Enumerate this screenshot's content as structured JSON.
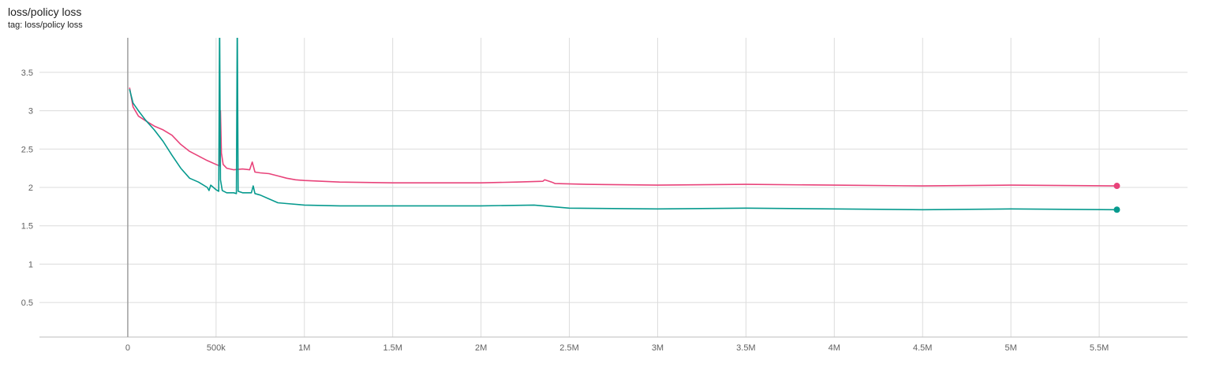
{
  "header": {
    "title": "loss/policy loss",
    "tag": "tag: loss/policy loss"
  },
  "chart_data": {
    "type": "line",
    "title": "loss/policy loss",
    "subtitle": "tag: loss/policy loss",
    "xlabel": "",
    "ylabel": "",
    "xlim": [
      -500000,
      6000000
    ],
    "ylim": [
      0.05,
      3.95
    ],
    "grid": true,
    "x_ticks": [
      {
        "value": 0,
        "label": "0"
      },
      {
        "value": 500000,
        "label": "500k"
      },
      {
        "value": 1000000,
        "label": "1M"
      },
      {
        "value": 1500000,
        "label": "1.5M"
      },
      {
        "value": 2000000,
        "label": "2M"
      },
      {
        "value": 2500000,
        "label": "2.5M"
      },
      {
        "value": 3000000,
        "label": "3M"
      },
      {
        "value": 3500000,
        "label": "3.5M"
      },
      {
        "value": 4000000,
        "label": "4M"
      },
      {
        "value": 4500000,
        "label": "4.5M"
      },
      {
        "value": 5000000,
        "label": "5M"
      },
      {
        "value": 5500000,
        "label": "5.5M"
      }
    ],
    "y_ticks": [
      {
        "value": 0.5,
        "label": "0.5"
      },
      {
        "value": 1,
        "label": "1"
      },
      {
        "value": 1.5,
        "label": "1.5"
      },
      {
        "value": 2,
        "label": "2"
      },
      {
        "value": 2.5,
        "label": "2.5"
      },
      {
        "value": 3,
        "label": "3"
      },
      {
        "value": 3.5,
        "label": "3.5"
      }
    ],
    "series": [
      {
        "color": "#e8437a",
        "x": [
          10000,
          30000,
          60000,
          100000,
          150000,
          200000,
          250000,
          300000,
          350000,
          400000,
          450000,
          500000,
          520000,
          525000,
          530000,
          540000,
          560000,
          600000,
          650000,
          690000,
          705000,
          720000,
          750000,
          800000,
          850000,
          900000,
          950000,
          1000000,
          1200000,
          1500000,
          1800000,
          2000000,
          2200000,
          2350000,
          2360000,
          2400000,
          2420000,
          2600000,
          3000000,
          3500000,
          4000000,
          4500000,
          5000000,
          5600000
        ],
        "y": [
          3.3,
          3.05,
          2.93,
          2.87,
          2.8,
          2.75,
          2.68,
          2.56,
          2.47,
          2.41,
          2.35,
          2.3,
          2.28,
          3.0,
          2.45,
          2.3,
          2.25,
          2.23,
          2.24,
          2.23,
          2.33,
          2.2,
          2.19,
          2.18,
          2.15,
          2.12,
          2.1,
          2.09,
          2.07,
          2.06,
          2.06,
          2.06,
          2.07,
          2.08,
          2.1,
          2.07,
          2.05,
          2.04,
          2.03,
          2.04,
          2.03,
          2.02,
          2.03,
          2.02
        ]
      },
      {
        "color": "#069a8e",
        "x": [
          10000,
          30000,
          60000,
          100000,
          150000,
          200000,
          250000,
          300000,
          350000,
          400000,
          450000,
          460000,
          470000,
          500000,
          515000,
          520000,
          525000,
          535000,
          560000,
          600000,
          615000,
          620000,
          625000,
          650000,
          680000,
          700000,
          710000,
          720000,
          750000,
          800000,
          850000,
          900000,
          1000000,
          1200000,
          1500000,
          2000000,
          2300000,
          2500000,
          3000000,
          3500000,
          4000000,
          4500000,
          5000000,
          5600000
        ],
        "y": [
          3.28,
          3.1,
          3.0,
          2.88,
          2.75,
          2.6,
          2.42,
          2.25,
          2.12,
          2.07,
          2.0,
          1.96,
          2.03,
          1.97,
          1.95,
          4.2,
          2.1,
          1.96,
          1.93,
          1.93,
          1.92,
          4.2,
          1.95,
          1.93,
          1.93,
          1.93,
          2.02,
          1.92,
          1.9,
          1.85,
          1.8,
          1.79,
          1.77,
          1.76,
          1.76,
          1.76,
          1.77,
          1.73,
          1.72,
          1.73,
          1.72,
          1.71,
          1.72,
          1.71
        ]
      }
    ]
  }
}
